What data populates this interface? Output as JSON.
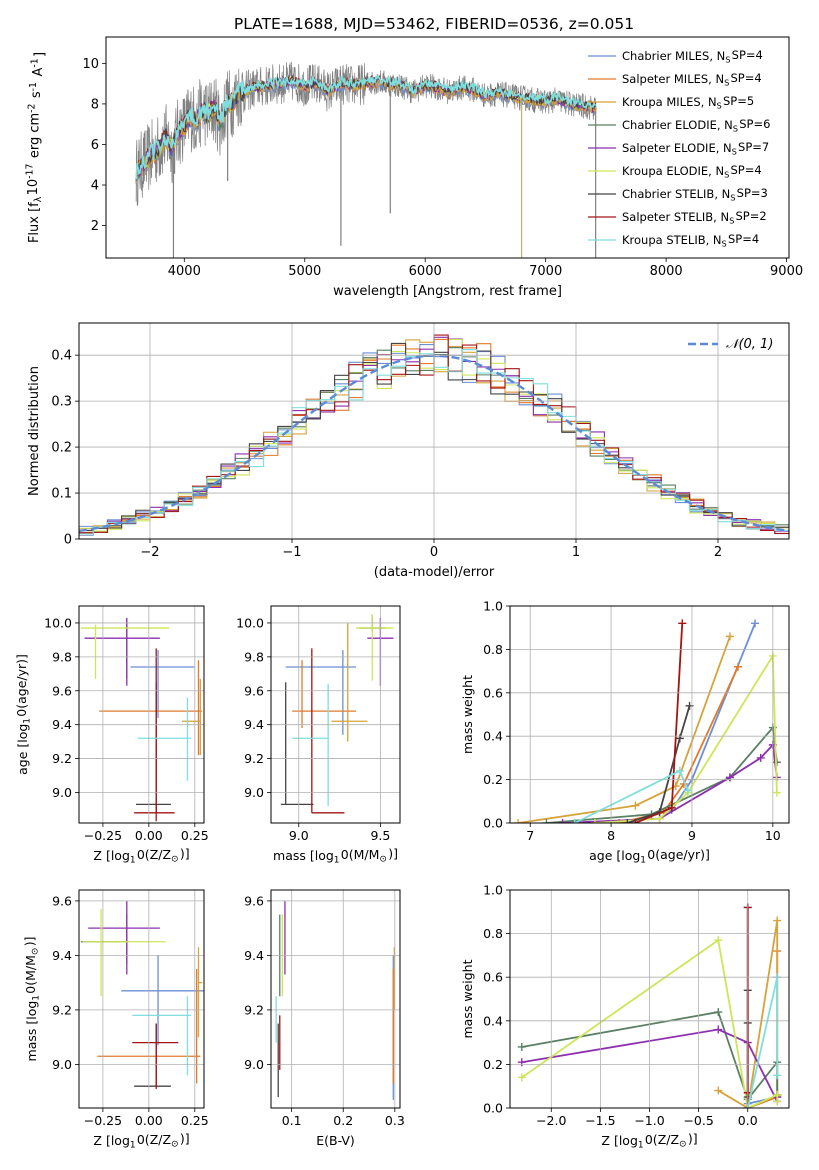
{
  "figure": {
    "title": "PLATE=1688, MJD=53462, FIBERID=0536, z=0.051"
  },
  "colors": [
    "#6b8fd6",
    "#e27a2b",
    "#d6a23a",
    "#5a7f64",
    "#8e2faf",
    "#cfe558",
    "#444444",
    "#a31515",
    "#7fdede"
  ],
  "models": [
    "Chabrier MILES, N$SSP=4",
    "Salpeter MILES, N$SSP=4",
    "Kroupa MILES, N$SSP=5",
    "Chabrier ELODIE, N$SSP=6",
    "Salpeter ELODIE, N$SSP=7",
    "Kroupa ELODIE, N$SSP=4",
    "Chabrier STELIB, N$SSP=3",
    "Salpeter STELIB, N$SSP=2",
    "Kroupa STELIB, N$SSP=4"
  ],
  "chart_data": [
    {
      "id": "spectrum",
      "type": "line",
      "xlabel": "wavelength [Angstrom, rest frame]",
      "ylabel": "Flux [f$λ10^{-17} erg cm^{-2} s^{-1} A^{-1}]",
      "xlim": [
        3350,
        9020
      ],
      "ylim": [
        0.4,
        11.3
      ],
      "xticks": [
        4000,
        5000,
        6000,
        7000,
        8000,
        9000
      ],
      "yticks": [
        2,
        4,
        6,
        8,
        10
      ],
      "grid": false,
      "legend": "right",
      "data_range": [
        3600,
        7420
      ],
      "continuum": {
        "x": [
          3600,
          3650,
          3700,
          3750,
          3800,
          3850,
          3900,
          3950,
          4000,
          4050,
          4100,
          4150,
          4200,
          4250,
          4300,
          4350,
          4400,
          4450,
          4500,
          4600,
          4700,
          4800,
          4900,
          5000,
          5100,
          5200,
          5300,
          5400,
          5500,
          5600,
          5700,
          5800,
          5900,
          6000,
          6100,
          6200,
          6300,
          6400,
          6500,
          6600,
          6700,
          6800,
          6900,
          7000,
          7100,
          7200,
          7300,
          7400
        ],
        "y": [
          4.6,
          5.0,
          5.3,
          5.6,
          5.9,
          6.3,
          5.8,
          6.6,
          6.9,
          7.4,
          7.2,
          7.7,
          7.5,
          7.8,
          7.0,
          8.0,
          8.1,
          8.5,
          8.6,
          8.8,
          8.9,
          9.0,
          9.1,
          8.9,
          9.0,
          8.6,
          9.0,
          8.9,
          9.0,
          9.1,
          9.0,
          8.9,
          8.6,
          8.9,
          8.8,
          8.6,
          8.8,
          8.7,
          8.4,
          8.5,
          8.4,
          8.3,
          8.2,
          8.1,
          8.2,
          8.0,
          7.9,
          7.8
        ]
      },
      "spikes": [
        {
          "x": 3910,
          "ymin": 0.4
        },
        {
          "x": 4360,
          "ymin": 4.2
        },
        {
          "x": 5300,
          "ymin": 1.0
        },
        {
          "x": 5710,
          "ymin": 2.6
        },
        {
          "x": 6800,
          "ymin": 0.4
        },
        {
          "x": 7415,
          "ymin": 0.4
        }
      ]
    },
    {
      "id": "residual-histogram",
      "type": "bar",
      "xlabel": "(data-model)/error",
      "ylabel": "Normed distribution",
      "xlim": [
        -2.5,
        2.5
      ],
      "ylim": [
        0,
        0.47
      ],
      "xticks": [
        -2,
        -1,
        0,
        1,
        2
      ],
      "yticks": [
        0.0,
        0.1,
        0.2,
        0.3,
        0.4
      ],
      "grid": true,
      "legend": "top-right",
      "gaussian_label": "𝒩(0, 1)",
      "bin_width": 0.1
    },
    {
      "id": "age-vs-z",
      "type": "scatter",
      "xlabel": "Z [log$10(Z/Z$⊙)]",
      "ylabel": "age  [log$10(age/yr)]",
      "xlim": [
        -0.38,
        0.3
      ],
      "ylim": [
        8.82,
        10.1
      ],
      "xticks": [
        -0.25,
        0.0,
        0.25
      ],
      "xticklabels": [
        "−0.25",
        "0.00",
        "0.25"
      ],
      "yticks": [
        9.0,
        9.2,
        9.4,
        9.6,
        9.8,
        10.0
      ],
      "yticklabels": [
        "9.0",
        "9.2",
        "9.4",
        "9.6",
        "9.8",
        "10.0"
      ],
      "grid": true,
      "points": [
        {
          "x": 0.05,
          "y": 9.74,
          "xerr": [
            0.15,
            0.2
          ],
          "yerr": [
            0.3,
            0.1
          ],
          "c": 0
        },
        {
          "x": 0.27,
          "y": 9.48,
          "xerr": [
            0.54,
            0.02
          ],
          "yerr": [
            0.26,
            0.3
          ],
          "c": 1
        },
        {
          "x": 0.28,
          "y": 9.42,
          "xerr": [
            0.1,
            0.0
          ],
          "yerr": [
            0.2,
            0.25
          ],
          "c": 2
        },
        {
          "x": -0.12,
          "y": 9.97,
          "xerr": [
            0.01,
            0.01
          ],
          "yerr": [
            0.3,
            0.05
          ],
          "c": 3
        },
        {
          "x": -0.12,
          "y": 9.91,
          "xerr": [
            0.23,
            0.18
          ],
          "yerr": [
            0.28,
            0.12
          ],
          "c": 4
        },
        {
          "x": -0.29,
          "y": 9.97,
          "xerr": [
            0.08,
            0.4
          ],
          "yerr": [
            0.3,
            0.02
          ],
          "c": 5
        },
        {
          "x": 0.04,
          "y": 8.93,
          "xerr": [
            0.11,
            0.08
          ],
          "yerr": [
            0.05,
            0.72
          ],
          "c": 6
        },
        {
          "x": 0.04,
          "y": 8.88,
          "xerr": [
            0.12,
            0.1
          ],
          "yerr": [
            0.05,
            0.97
          ],
          "c": 7
        },
        {
          "x": 0.21,
          "y": 9.32,
          "xerr": [
            0.27,
            0.02
          ],
          "yerr": [
            0.25,
            0.24
          ],
          "c": 8
        }
      ]
    },
    {
      "id": "age-vs-mass",
      "type": "scatter",
      "xlabel": "mass [log$10(M/M$⊙)]",
      "ylabel": "",
      "xlim": [
        8.83,
        9.62
      ],
      "ylim": [
        8.82,
        10.1
      ],
      "xticks": [
        9.0,
        9.5
      ],
      "xticklabels": [
        "9.0",
        "9.5"
      ],
      "yticks": [
        9.0,
        9.2,
        9.4,
        9.6,
        9.8,
        10.0
      ],
      "yticklabels": [
        "9.0",
        "9.2",
        "9.4",
        "9.6",
        "9.8",
        "10.0"
      ],
      "grid": true,
      "points": [
        {
          "x": 9.27,
          "y": 9.74,
          "xerr": [
            0.35,
            0.08
          ],
          "yerr": [
            0.4,
            0.1
          ],
          "c": 0
        },
        {
          "x": 9.02,
          "y": 9.48,
          "xerr": [
            0.06,
            0.33
          ],
          "yerr": [
            0.1,
            0.3
          ],
          "c": 1
        },
        {
          "x": 9.3,
          "y": 9.42,
          "xerr": [
            0.1,
            0.12
          ],
          "yerr": [
            0.12,
            0.58
          ],
          "c": 2
        },
        {
          "x": 9.45,
          "y": 9.97,
          "xerr": [
            0.08,
            0.08
          ],
          "yerr": [
            0.02,
            0.08
          ],
          "c": 3
        },
        {
          "x": 9.5,
          "y": 9.91,
          "xerr": [
            0.08,
            0.08
          ],
          "yerr": [
            0.28,
            0.12
          ],
          "c": 4
        },
        {
          "x": 9.45,
          "y": 9.97,
          "xerr": [
            0.1,
            0.13
          ],
          "yerr": [
            0.31,
            0.08
          ],
          "c": 5
        },
        {
          "x": 8.92,
          "y": 8.93,
          "xerr": [
            0.03,
            0.17
          ],
          "yerr": [
            0.0,
            0.72
          ],
          "c": 6
        },
        {
          "x": 9.08,
          "y": 8.88,
          "xerr": [
            0.0,
            0.2
          ],
          "yerr": [
            0.0,
            0.97
          ],
          "c": 7
        },
        {
          "x": 9.18,
          "y": 9.32,
          "xerr": [
            0.22,
            0.0
          ],
          "yerr": [
            0.4,
            0.32
          ],
          "c": 8
        }
      ]
    },
    {
      "id": "mass-weight-vs-age",
      "type": "line",
      "xlabel": "age  [log$10(age/yr)]",
      "ylabel": "mass weight",
      "xlim": [
        6.75,
        10.2
      ],
      "ylim": [
        0,
        1
      ],
      "xticks": [
        7,
        8,
        9,
        10
      ],
      "xticklabels": [
        "7",
        "8",
        "9",
        "10"
      ],
      "yticks": [
        0.0,
        0.2,
        0.4,
        0.6,
        0.8,
        1.0
      ],
      "yticklabels": [
        "0.0",
        "0.2",
        "0.4",
        "0.6",
        "0.8",
        "1.0"
      ],
      "grid": true,
      "series": [
        {
          "c": 0,
          "x": [
            8.2,
            8.75,
            9.0,
            9.78
          ],
          "y": [
            0.0,
            0.06,
            0.2,
            0.92
          ]
        },
        {
          "c": 1,
          "x": [
            8.1,
            8.65,
            8.9,
            9.57
          ],
          "y": [
            0.0,
            0.05,
            0.18,
            0.72
          ]
        },
        {
          "c": 2,
          "x": [
            6.85,
            8.3,
            8.8,
            9.47
          ],
          "y": [
            0.0,
            0.08,
            0.17,
            0.86
          ]
        },
        {
          "c": 3,
          "x": [
            7.2,
            8.5,
            9.47,
            10.0,
            10.05
          ],
          "y": [
            0.0,
            0.04,
            0.21,
            0.44,
            0.28
          ]
        },
        {
          "c": 4,
          "x": [
            7.4,
            8.6,
            9.47,
            9.85,
            10.0,
            10.05
          ],
          "y": [
            0.0,
            0.02,
            0.21,
            0.3,
            0.36,
            0.21
          ]
        },
        {
          "c": 5,
          "x": [
            7.8,
            8.6,
            8.95,
            10.0,
            10.05
          ],
          "y": [
            0.0,
            0.02,
            0.14,
            0.77,
            0.14
          ]
        },
        {
          "c": 6,
          "x": [
            8.2,
            8.6,
            8.85,
            8.97
          ],
          "y": [
            0.0,
            0.05,
            0.39,
            0.54
          ]
        },
        {
          "c": 7,
          "x": [
            8.3,
            8.75,
            8.88
          ],
          "y": [
            0.0,
            0.07,
            0.92
          ]
        },
        {
          "c": 8,
          "x": [
            7.55,
            8.85,
            8.95
          ],
          "y": [
            0.0,
            0.24,
            0.15
          ]
        }
      ]
    },
    {
      "id": "mass-vs-z",
      "type": "scatter",
      "xlabel": "Z [log$10(Z/Z$⊙)]",
      "ylabel": "mass [log$10(M/M$⊙)]",
      "xlim": [
        -0.38,
        0.3
      ],
      "ylim": [
        8.84,
        9.64
      ],
      "xticks": [
        -0.25,
        0.0,
        0.25
      ],
      "xticklabels": [
        "−0.25",
        "0.00",
        "0.25"
      ],
      "yticks": [
        9.0,
        9.2,
        9.4,
        9.6
      ],
      "yticklabels": [
        "9.0",
        "9.2",
        "9.4",
        "9.6"
      ],
      "grid": true,
      "points": [
        {
          "x": 0.05,
          "y": 9.27,
          "xerr": [
            0.2,
            0.25
          ],
          "yerr": [
            0.2,
            0.13
          ],
          "c": 0
        },
        {
          "x": 0.26,
          "y": 9.03,
          "xerr": [
            0.54,
            0.02
          ],
          "yerr": [
            0.1,
            0.32
          ],
          "c": 1
        },
        {
          "x": 0.27,
          "y": 9.3,
          "xerr": [
            0.0,
            0.02
          ],
          "yerr": [
            0.2,
            0.13
          ],
          "c": 2
        },
        {
          "x": -0.12,
          "y": 9.45,
          "xerr": [
            0.25,
            0.0
          ],
          "yerr": [
            0.08,
            0.1
          ],
          "c": 3
        },
        {
          "x": -0.12,
          "y": 9.5,
          "xerr": [
            0.21,
            0.18
          ],
          "yerr": [
            0.17,
            0.1
          ],
          "c": 4
        },
        {
          "x": -0.26,
          "y": 9.45,
          "xerr": [
            0.1,
            0.35
          ],
          "yerr": [
            0.2,
            0.12
          ],
          "c": 5
        },
        {
          "x": 0.04,
          "y": 8.92,
          "xerr": [
            0.12,
            0.08
          ],
          "yerr": [
            0.0,
            0.23
          ],
          "c": 6
        },
        {
          "x": 0.04,
          "y": 9.08,
          "xerr": [
            0.13,
            0.12
          ],
          "yerr": [
            0.17,
            0.07
          ],
          "c": 7
        },
        {
          "x": 0.21,
          "y": 9.18,
          "xerr": [
            0.3,
            0.02
          ],
          "yerr": [
            0.22,
            0.07
          ],
          "c": 8
        }
      ]
    },
    {
      "id": "mass-vs-ebv",
      "type": "scatter",
      "xlabel": "E(B-V)",
      "ylabel": "",
      "xlim": [
        0.06,
        0.31
      ],
      "ylim": [
        8.84,
        9.64
      ],
      "xticks": [
        0.1,
        0.2,
        0.3
      ],
      "xticklabels": [
        "0.1",
        "0.2",
        "0.3"
      ],
      "yticks": [
        9.0,
        9.2,
        9.4,
        9.6
      ],
      "yticklabels": [
        "9.0",
        "9.2",
        "9.4",
        "9.6"
      ],
      "grid": true,
      "points": [
        {
          "x": 0.297,
          "y": 9.27,
          "xerr": [
            0,
            0
          ],
          "yerr": [
            0.4,
            0.13
          ],
          "c": 0
        },
        {
          "x": 0.297,
          "y": 9.03,
          "xerr": [
            0,
            0
          ],
          "yerr": [
            0.1,
            0.32
          ],
          "c": 1
        },
        {
          "x": 0.299,
          "y": 9.3,
          "xerr": [
            0,
            0
          ],
          "yerr": [
            0.1,
            0.13
          ],
          "c": 2
        },
        {
          "x": 0.077,
          "y": 9.45,
          "xerr": [
            0,
            0
          ],
          "yerr": [
            0.2,
            0.1
          ],
          "c": 3
        },
        {
          "x": 0.087,
          "y": 9.5,
          "xerr": [
            0,
            0
          ],
          "yerr": [
            0.17,
            0.1
          ],
          "c": 4
        },
        {
          "x": 0.082,
          "y": 9.45,
          "xerr": [
            0,
            0
          ],
          "yerr": [
            0.2,
            0.1
          ],
          "c": 5
        },
        {
          "x": 0.074,
          "y": 8.92,
          "xerr": [
            0,
            0
          ],
          "yerr": [
            0.04,
            0.23
          ],
          "c": 6
        },
        {
          "x": 0.077,
          "y": 9.08,
          "xerr": [
            0,
            0
          ],
          "yerr": [
            0.1,
            0.1
          ],
          "c": 7
        },
        {
          "x": 0.07,
          "y": 9.18,
          "xerr": [
            0,
            0
          ],
          "yerr": [
            0.1,
            0.07
          ],
          "c": 8
        }
      ]
    },
    {
      "id": "mass-weight-vs-z",
      "type": "line",
      "xlabel": "Z [log$10(Z/Z$⊙)]",
      "ylabel": "mass weight",
      "xlim": [
        -2.42,
        0.42
      ],
      "ylim": [
        0,
        1
      ],
      "xticks": [
        -2.0,
        -1.5,
        -1.0,
        -0.5,
        0.0
      ],
      "xticklabels": [
        "−2.0",
        "−1.5",
        "−1.0",
        "−0.5",
        "0.0"
      ],
      "yticks": [
        0.0,
        0.2,
        0.4,
        0.6,
        0.8,
        1.0
      ],
      "yticklabels": [
        "0.0",
        "0.2",
        "0.4",
        "0.6",
        "0.8",
        "1.0"
      ],
      "grid": true,
      "series": [
        {
          "c": 0,
          "x": [
            0.0,
            0.0,
            0.3,
            0.3
          ],
          "y": [
            0.92,
            0.02,
            0.05,
            0.06
          ]
        },
        {
          "c": 1,
          "x": [
            0.0,
            0.3,
            0.3,
            0.3
          ],
          "y": [
            0.0,
            0.05,
            0.72,
            0.06
          ]
        },
        {
          "c": 2,
          "x": [
            -0.3,
            0.0,
            0.3,
            0.3
          ],
          "y": [
            0.08,
            0.0,
            0.86,
            0.06
          ]
        },
        {
          "c": 3,
          "x": [
            -2.3,
            -0.3,
            0.0,
            0.3,
            0.3
          ],
          "y": [
            0.28,
            0.44,
            0.04,
            0.21,
            0.06
          ]
        },
        {
          "c": 4,
          "x": [
            -2.3,
            -0.3,
            0.0,
            0.3,
            0.3
          ],
          "y": [
            0.21,
            0.36,
            0.3,
            0.03,
            0.05
          ]
        },
        {
          "c": 5,
          "x": [
            -2.3,
            -0.3,
            0.0,
            0.3,
            0.3
          ],
          "y": [
            0.14,
            0.77,
            0.0,
            0.06,
            0.03
          ]
        },
        {
          "c": 6,
          "x": [
            0.0,
            0.0,
            0.0
          ],
          "y": [
            0.54,
            0.39,
            0.05
          ]
        },
        {
          "c": 7,
          "x": [
            0.0,
            0.0,
            0.0
          ],
          "y": [
            0.92,
            0.07,
            0.0
          ]
        },
        {
          "c": 8,
          "x": [
            0.0,
            0.3,
            0.3
          ],
          "y": [
            0.0,
            0.6,
            0.15
          ]
        }
      ]
    }
  ]
}
